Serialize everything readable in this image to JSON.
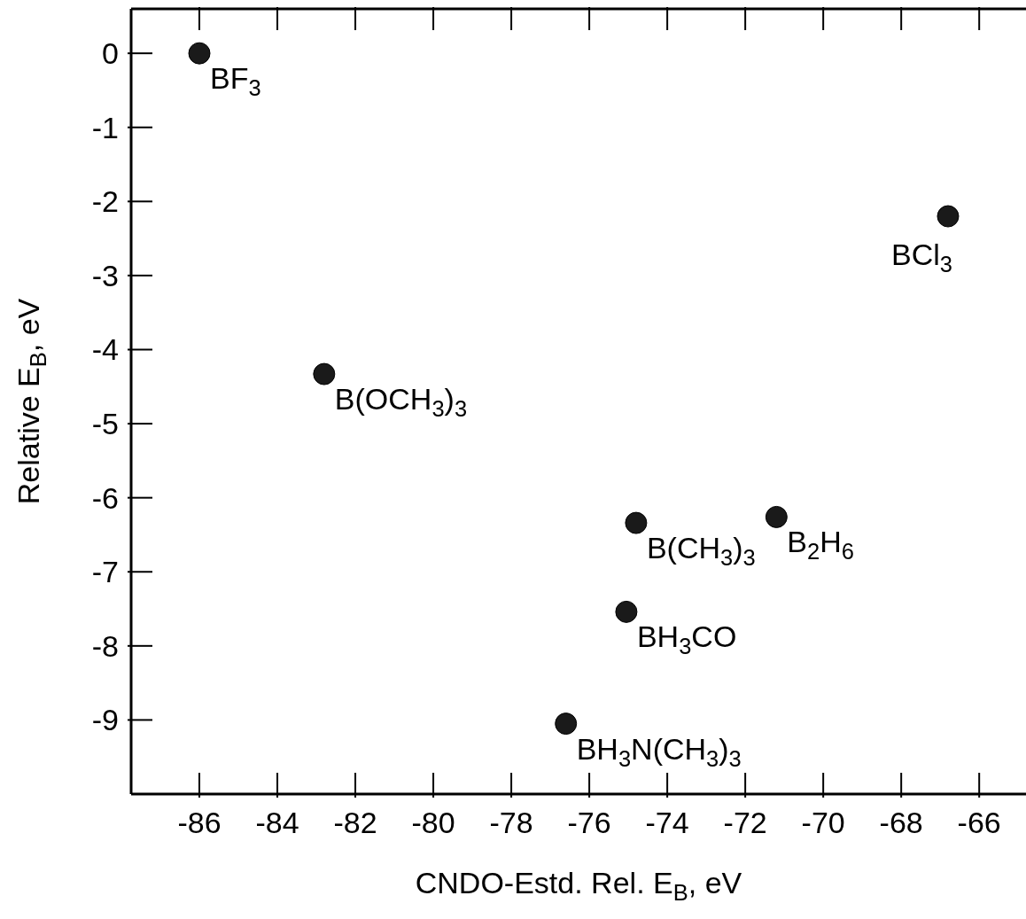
{
  "chart_data": {
    "type": "scatter",
    "xlabel": "CNDO-Estd. Rel. E$_{B}$, eV",
    "ylabel": "Relative E$_{B}$, eV",
    "x": [
      -86.0,
      -66.8,
      -82.8,
      -74.8,
      -71.2,
      -75.05,
      -76.6
    ],
    "series": [
      {
        "color": "#1a1a1a",
        "values": [
          0.0,
          -2.2,
          -4.33,
          -6.34,
          -6.26,
          -7.54,
          -9.05
        ]
      }
    ],
    "marker": "circle",
    "grid": false,
    "xlim": [
      -87.75,
      -64.8
    ],
    "xticks": [
      -86,
      -84,
      -82,
      -80,
      -78,
      -76,
      -74,
      -72,
      -70,
      -68,
      -66
    ],
    "ylim": [
      -10,
      0.6
    ],
    "yticks": [
      0,
      -1,
      -2,
      -3,
      -4,
      -5,
      -6,
      -7,
      -8,
      -9
    ],
    "annotations": [
      {
        "text": "BF$_{3}$",
        "x": -86.0,
        "y": 0.0
      },
      {
        "text": "BCl$_{3}$",
        "x": -66.8,
        "y": -2.2
      },
      {
        "text": "B(OCH$_{3}$)$_{3}$",
        "x": -82.8,
        "y": -4.33
      },
      {
        "text": "B(CH$_{3}$)$_{3}$",
        "x": -74.8,
        "y": -6.34
      },
      {
        "text": "B$_{2}$H$_{6}$",
        "x": -71.2,
        "y": -6.26
      },
      {
        "text": "BH$_{3}$CO",
        "x": -75.05,
        "y": -7.54
      },
      {
        "text": "BH$_{3}$N(CH$_{3}$)$_{3}$",
        "x": -76.6,
        "y": -9.05
      }
    ]
  }
}
